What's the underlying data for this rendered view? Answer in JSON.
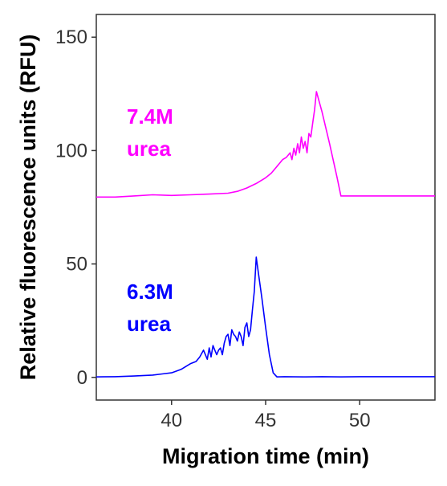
{
  "chart_data": {
    "type": "line",
    "xlabel": "Migration time (min)",
    "ylabel": "Relative fluorescence units (RFU)",
    "xlim": [
      36,
      54
    ],
    "ylim": [
      -10,
      160
    ],
    "xticks": [
      40,
      45,
      50
    ],
    "yticks": [
      0,
      50,
      100,
      150
    ],
    "grid": false,
    "series": [
      {
        "name": "7.4M urea",
        "label_lines": [
          "7.4M",
          "urea"
        ],
        "color": "#ff00ff",
        "x": [
          36.0,
          37.0,
          38.0,
          39.0,
          40.0,
          41.0,
          42.0,
          43.0,
          43.5,
          44.0,
          44.5,
          45.0,
          45.3,
          45.6,
          45.9,
          46.1,
          46.3,
          46.4,
          46.5,
          46.6,
          46.7,
          46.8,
          46.9,
          47.0,
          47.1,
          47.2,
          47.3,
          47.4,
          47.5,
          47.6,
          47.7,
          48.0,
          48.4,
          48.8,
          49.0,
          50.0,
          51.0,
          52.0,
          53.0,
          54.0
        ],
        "y": [
          79.5,
          79.5,
          80.0,
          80.5,
          80.2,
          80.5,
          80.8,
          81.2,
          82.0,
          83.5,
          85.5,
          88.0,
          90.0,
          93.0,
          96.0,
          97.0,
          99.0,
          96.0,
          101.0,
          98.0,
          103.0,
          99.0,
          106.0,
          101.0,
          104.0,
          99.0,
          107.5,
          106.0,
          112.0,
          118.0,
          126.0,
          117.0,
          103.0,
          88.0,
          80.0,
          80.0,
          80.0,
          80.0,
          80.0,
          80.0
        ]
      },
      {
        "name": "6.3M urea",
        "label_lines": [
          "6.3M",
          "urea"
        ],
        "color": "#0000ff",
        "x": [
          36.0,
          37.0,
          38.0,
          39.0,
          39.5,
          40.0,
          40.5,
          41.0,
          41.3,
          41.5,
          41.7,
          41.9,
          42.0,
          42.1,
          42.2,
          42.3,
          42.4,
          42.5,
          42.6,
          42.7,
          42.8,
          42.9,
          43.0,
          43.1,
          43.2,
          43.3,
          43.4,
          43.5,
          43.6,
          43.7,
          43.8,
          43.9,
          44.0,
          44.1,
          44.2,
          44.3,
          44.4,
          44.5,
          44.6,
          44.8,
          45.0,
          45.2,
          45.4,
          45.6,
          46.0,
          47.0,
          48.0,
          49.0,
          50.0,
          51.0,
          52.0,
          53.0,
          54.0
        ],
        "y": [
          0.2,
          0.3,
          0.6,
          1.0,
          1.5,
          2.0,
          3.5,
          6.0,
          7.0,
          9.0,
          12.0,
          8.0,
          13.0,
          9.0,
          14.0,
          12.0,
          10.0,
          12.0,
          13.0,
          10.0,
          15.0,
          18.0,
          19.0,
          14.0,
          21.0,
          19.0,
          18.0,
          16.0,
          20.0,
          18.0,
          14.0,
          22.0,
          24.0,
          18.0,
          21.0,
          30.0,
          38.0,
          53.0,
          47.0,
          35.0,
          22.0,
          10.0,
          2.0,
          0.2,
          0.3,
          0.2,
          0.3,
          0.2,
          0.3,
          0.3,
          0.3,
          0.3,
          0.3
        ]
      }
    ]
  }
}
